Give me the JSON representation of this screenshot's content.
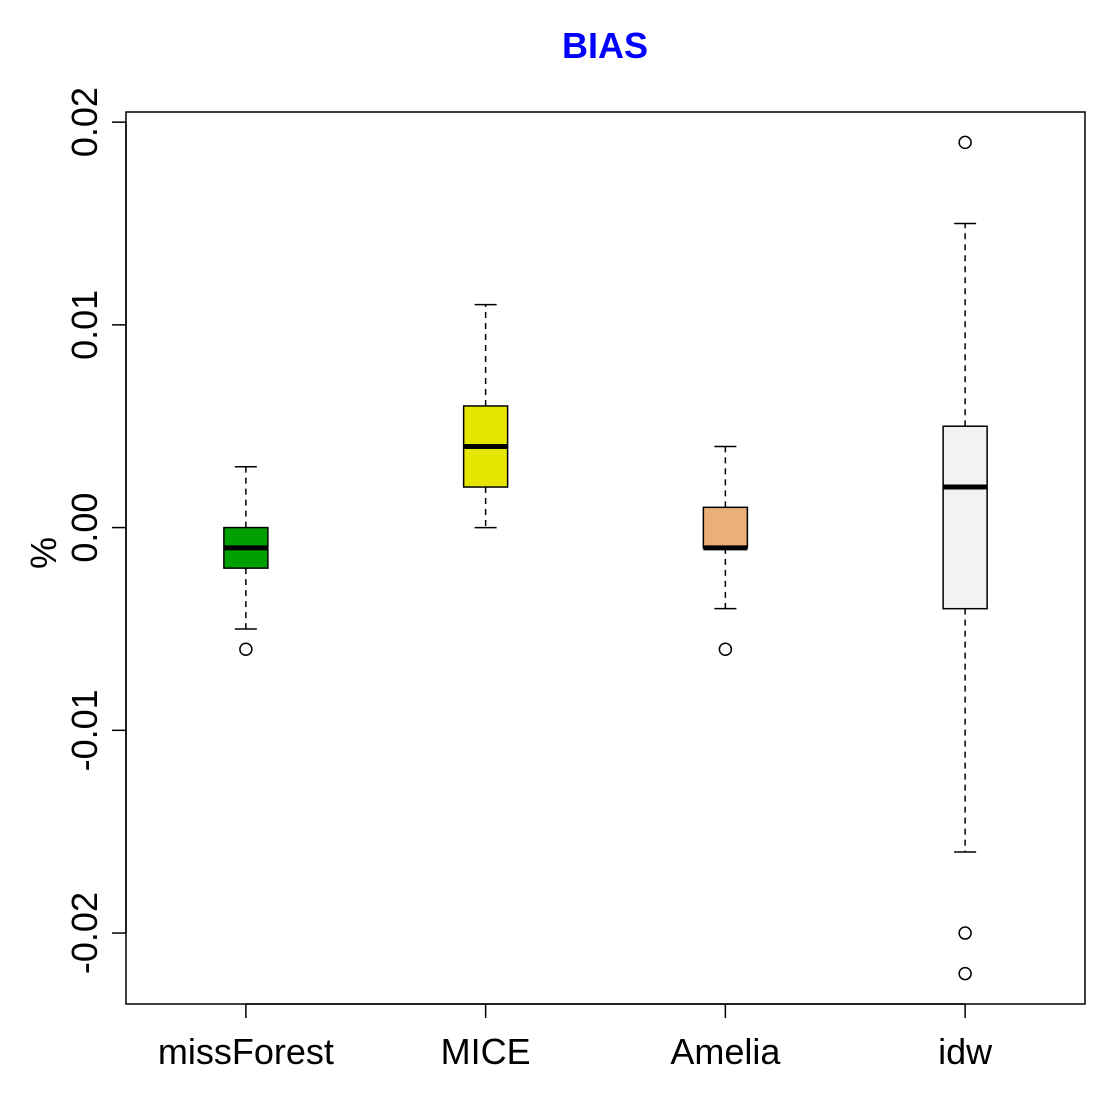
{
  "chart_data": {
    "type": "boxplot",
    "title": "BIAS",
    "title_color": "#0000ff",
    "xlabel": "",
    "ylabel": "%",
    "ylim": [
      -0.0235,
      0.0205
    ],
    "yticks": [
      -0.02,
      -0.01,
      0.0,
      0.01,
      0.02
    ],
    "ytick_labels": [
      "-0.02",
      "-0.01",
      "0.00",
      "0.01",
      "0.02"
    ],
    "grid": false,
    "categories": [
      "missForest",
      "MICE",
      "Amelia",
      "idw"
    ],
    "boxes": [
      {
        "name": "missForest",
        "color": "#00a000",
        "whisker_low": -0.005,
        "q1": -0.002,
        "median": -0.001,
        "q3": 0.0,
        "whisker_high": 0.003,
        "outliers": [
          -0.006
        ]
      },
      {
        "name": "MICE",
        "color": "#e5e500",
        "whisker_low": 0.0,
        "q1": 0.002,
        "median": 0.004,
        "q3": 0.006,
        "whisker_high": 0.011,
        "outliers": []
      },
      {
        "name": "Amelia",
        "color": "#ebb07a",
        "whisker_low": -0.004,
        "q1": -0.001,
        "median": -0.001,
        "q3": 0.001,
        "whisker_high": 0.004,
        "outliers": [
          -0.006
        ]
      },
      {
        "name": "idw",
        "color": "#f2f2f2",
        "whisker_low": -0.016,
        "q1": -0.004,
        "median": 0.002,
        "q3": 0.005,
        "whisker_high": 0.015,
        "outliers": [
          0.019,
          -0.02,
          -0.022
        ]
      }
    ]
  }
}
